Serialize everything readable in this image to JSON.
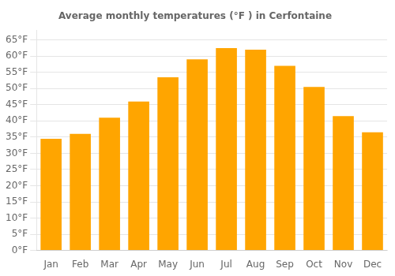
{
  "chart_data": {
    "type": "bar",
    "title": "Average monthly temperatures (°F ) in Cerfontaine",
    "categories": [
      "Jan",
      "Feb",
      "Mar",
      "Apr",
      "May",
      "Jun",
      "Jul",
      "Aug",
      "Sep",
      "Oct",
      "Nov",
      "Dec"
    ],
    "values": [
      34.5,
      36.0,
      41.0,
      46.0,
      53.5,
      59.0,
      62.5,
      62.0,
      57.0,
      50.5,
      41.5,
      36.5
    ],
    "color": "#FFA500",
    "ylim": [
      0,
      68
    ],
    "yticks": [
      {
        "value": 0,
        "label": "0°F"
      },
      {
        "value": 5,
        "label": "5°F"
      },
      {
        "value": 10,
        "label": "10°F"
      },
      {
        "value": 15,
        "label": "15°F"
      },
      {
        "value": 20,
        "label": "20°F"
      },
      {
        "value": 25,
        "label": "25°F"
      },
      {
        "value": 30,
        "label": "30°F"
      },
      {
        "value": 35,
        "label": "35°F"
      },
      {
        "value": 40,
        "label": "40°F"
      },
      {
        "value": 45,
        "label": "45°F"
      },
      {
        "value": 50,
        "label": "50°F"
      },
      {
        "value": 55,
        "label": "55°F"
      },
      {
        "value": 60,
        "label": "60°F"
      },
      {
        "value": 65,
        "label": "65°F"
      }
    ],
    "grid": true
  }
}
